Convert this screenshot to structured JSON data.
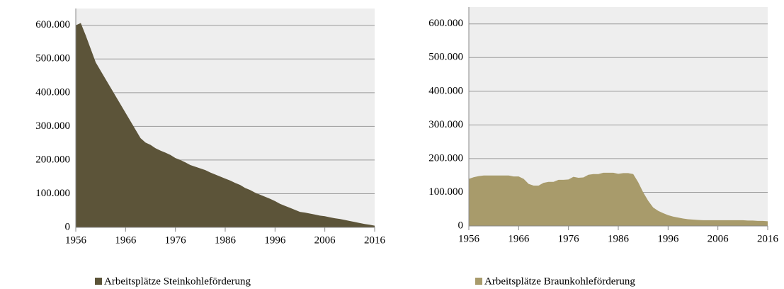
{
  "chart_data": [
    {
      "type": "area",
      "x": [
        1956,
        1957,
        1958,
        1959,
        1960,
        1961,
        1962,
        1963,
        1964,
        1965,
        1966,
        1967,
        1968,
        1969,
        1970,
        1971,
        1972,
        1973,
        1974,
        1975,
        1976,
        1977,
        1978,
        1979,
        1980,
        1981,
        1982,
        1983,
        1984,
        1985,
        1986,
        1987,
        1988,
        1989,
        1990,
        1991,
        1992,
        1993,
        1994,
        1995,
        1996,
        1997,
        1998,
        1999,
        2000,
        2001,
        2002,
        2003,
        2004,
        2005,
        2006,
        2007,
        2008,
        2009,
        2010,
        2011,
        2012,
        2013,
        2014,
        2015,
        2016
      ],
      "series": [
        {
          "name": "Arbeitsplätze Steinkohleförderung",
          "color": "#5c5439",
          "values": [
            600000,
            607000,
            570000,
            530000,
            490000,
            465000,
            440000,
            415000,
            390000,
            365000,
            340000,
            315000,
            290000,
            265000,
            252000,
            245000,
            235000,
            228000,
            222000,
            215000,
            206000,
            200000,
            193000,
            185000,
            180000,
            175000,
            170000,
            163000,
            157000,
            151000,
            145000,
            139000,
            132000,
            126000,
            117000,
            111000,
            103000,
            97000,
            91000,
            85000,
            78000,
            70000,
            64000,
            58000,
            52000,
            46000,
            44000,
            41000,
            38000,
            35000,
            33000,
            30000,
            27000,
            25000,
            22000,
            19000,
            16000,
            13000,
            10000,
            8000,
            5000
          ]
        }
      ],
      "xlim": [
        1956,
        2016
      ],
      "xticks": [
        1956,
        1966,
        1976,
        1986,
        1996,
        2006,
        2016
      ],
      "ylim": [
        0,
        650000
      ],
      "yticks": [
        0,
        {
          "value": 100000,
          "label": "100.000"
        },
        {
          "value": 200000,
          "label": "200.000"
        },
        {
          "value": 300000,
          "label": "300.000"
        },
        {
          "value": 400000,
          "label": "400.000"
        },
        {
          "value": 500000,
          "label": "500.000"
        },
        {
          "value": 600000,
          "label": "600.000"
        }
      ],
      "grid": true
    },
    {
      "type": "area",
      "x": [
        1956,
        1957,
        1958,
        1959,
        1960,
        1961,
        1962,
        1963,
        1964,
        1965,
        1966,
        1967,
        1968,
        1969,
        1970,
        1971,
        1972,
        1973,
        1974,
        1975,
        1976,
        1977,
        1978,
        1979,
        1980,
        1981,
        1982,
        1983,
        1984,
        1985,
        1986,
        1987,
        1988,
        1989,
        1990,
        1991,
        1992,
        1993,
        1994,
        1995,
        1996,
        1997,
        1998,
        1999,
        2000,
        2001,
        2002,
        2003,
        2004,
        2005,
        2006,
        2007,
        2008,
        2009,
        2010,
        2011,
        2012,
        2013,
        2014,
        2015,
        2016
      ],
      "series": [
        {
          "name": "Arbeitsplätze Braunkohleförderung",
          "color": "#a89b6b",
          "values": [
            140000,
            145000,
            148000,
            150000,
            150000,
            150000,
            150000,
            150000,
            150000,
            147000,
            147000,
            140000,
            125000,
            120000,
            120000,
            128000,
            131000,
            131000,
            137000,
            137000,
            138000,
            146000,
            143000,
            144000,
            152000,
            154000,
            154000,
            158000,
            158000,
            158000,
            155000,
            157000,
            157000,
            154000,
            130000,
            100000,
            75000,
            55000,
            45000,
            38000,
            32000,
            28000,
            25000,
            22000,
            20000,
            19000,
            18000,
            17000,
            17000,
            17000,
            17000,
            17000,
            17000,
            17000,
            17000,
            17000,
            16000,
            16000,
            15000,
            15000,
            14000
          ]
        }
      ],
      "xlim": [
        1956,
        2016
      ],
      "xticks": [
        1956,
        1966,
        1976,
        1986,
        1996,
        2006,
        2016
      ],
      "ylim": [
        0,
        650000
      ],
      "yticks": [
        0,
        {
          "value": 100000,
          "label": "100.000"
        },
        {
          "value": 200000,
          "label": "200.000"
        },
        {
          "value": 300000,
          "label": "300.000"
        },
        {
          "value": 400000,
          "label": "400.000"
        },
        {
          "value": 500000,
          "label": "500.000"
        },
        {
          "value": 600000,
          "label": "600.000"
        }
      ],
      "grid": true
    }
  ]
}
